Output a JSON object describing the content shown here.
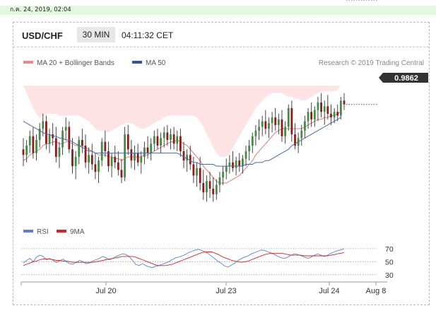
{
  "timestamp": "ก.ค. 24, 2019, 02:04",
  "header": {
    "pair": "USD/CHF",
    "timeframe": "30 MIN",
    "clock": "04:11:32 CET"
  },
  "credit": "Research © 2019 Trading Central",
  "colors": {
    "candle_up": "#3f8f3f",
    "candle_down": "#8e1a1a",
    "wick": "#333333",
    "bb_fill": "#fde3e3",
    "ma20": "#e07070",
    "ma50": "#4a66b0",
    "rsi": "#5b7fd6",
    "rsi_ma": "#e02020",
    "price_badge": "#333333"
  },
  "chart_data": [
    {
      "type": "candlestick",
      "title": "USD/CHF",
      "legend": [
        {
          "name": "MA 20 + Bollinger Bands",
          "color": "#e88a8a"
        },
        {
          "name": "MA 50",
          "color": "#3553a0"
        }
      ],
      "last_price": "0.9862",
      "x_tick_labels": [
        "Jul 20",
        "Jul 23",
        "Jul 24",
        "Aug 8"
      ],
      "grid": false,
      "ohlc": [
        [
          0.9838,
          0.9844,
          0.9829,
          0.9835
        ],
        [
          0.9835,
          0.9843,
          0.9831,
          0.984
        ],
        [
          0.984,
          0.9848,
          0.9836,
          0.9845
        ],
        [
          0.9845,
          0.985,
          0.9833,
          0.9836
        ],
        [
          0.9836,
          0.9846,
          0.9832,
          0.9843
        ],
        [
          0.9843,
          0.9852,
          0.9839,
          0.9849
        ],
        [
          0.9849,
          0.9857,
          0.9845,
          0.9853
        ],
        [
          0.9853,
          0.9856,
          0.9838,
          0.9841
        ],
        [
          0.9841,
          0.9849,
          0.9836,
          0.9846
        ],
        [
          0.9846,
          0.9852,
          0.984,
          0.9844
        ],
        [
          0.9844,
          0.985,
          0.9831,
          0.9834
        ],
        [
          0.9834,
          0.9842,
          0.9828,
          0.9839
        ],
        [
          0.9839,
          0.985,
          0.9835,
          0.9848
        ],
        [
          0.9848,
          0.9855,
          0.9843,
          0.985
        ],
        [
          0.985,
          0.9853,
          0.9836,
          0.9838
        ],
        [
          0.9838,
          0.9844,
          0.9825,
          0.9829
        ],
        [
          0.9829,
          0.9837,
          0.9822,
          0.9834
        ],
        [
          0.9834,
          0.9845,
          0.983,
          0.9843
        ],
        [
          0.9843,
          0.9849,
          0.9836,
          0.984
        ],
        [
          0.984,
          0.9846,
          0.9828,
          0.9831
        ],
        [
          0.9831,
          0.9839,
          0.9825,
          0.9835
        ],
        [
          0.9835,
          0.9841,
          0.9827,
          0.983
        ],
        [
          0.983,
          0.9836,
          0.9822,
          0.9826
        ],
        [
          0.9826,
          0.9834,
          0.982,
          0.9832
        ],
        [
          0.9832,
          0.9844,
          0.9829,
          0.9842
        ],
        [
          0.9842,
          0.9848,
          0.9834,
          0.9837
        ],
        [
          0.9837,
          0.9842,
          0.9826,
          0.9829
        ],
        [
          0.9829,
          0.9836,
          0.9823,
          0.9834
        ],
        [
          0.9834,
          0.984,
          0.9828,
          0.9831
        ],
        [
          0.9831,
          0.9837,
          0.9824,
          0.9827
        ],
        [
          0.9827,
          0.9833,
          0.982,
          0.9823
        ],
        [
          0.9823,
          0.985,
          0.9821,
          0.9846
        ],
        [
          0.9846,
          0.9851,
          0.9835,
          0.9838
        ],
        [
          0.9838,
          0.9843,
          0.9828,
          0.9832
        ],
        [
          0.9832,
          0.984,
          0.9827,
          0.9836
        ],
        [
          0.9836,
          0.9841,
          0.9829,
          0.9831
        ],
        [
          0.9831,
          0.9837,
          0.9825,
          0.9834
        ],
        [
          0.9834,
          0.9842,
          0.983,
          0.9839
        ],
        [
          0.9839,
          0.9845,
          0.9833,
          0.9836
        ],
        [
          0.9836,
          0.9844,
          0.9832,
          0.9841
        ],
        [
          0.9841,
          0.9848,
          0.9837,
          0.9845
        ],
        [
          0.9845,
          0.9849,
          0.9838,
          0.984
        ],
        [
          0.984,
          0.9847,
          0.9836,
          0.9844
        ],
        [
          0.9844,
          0.985,
          0.9839,
          0.9847
        ],
        [
          0.9847,
          0.9851,
          0.984,
          0.9843
        ],
        [
          0.9843,
          0.9849,
          0.9838,
          0.9846
        ],
        [
          0.9846,
          0.985,
          0.9838,
          0.9841
        ],
        [
          0.9841,
          0.9848,
          0.9837,
          0.9845
        ],
        [
          0.9845,
          0.9849,
          0.9834,
          0.9837
        ],
        [
          0.9837,
          0.9842,
          0.9828,
          0.9832
        ],
        [
          0.9832,
          0.9838,
          0.9826,
          0.9835
        ],
        [
          0.9835,
          0.984,
          0.9827,
          0.983
        ],
        [
          0.983,
          0.9834,
          0.982,
          0.9824
        ],
        [
          0.9824,
          0.9831,
          0.9818,
          0.9828
        ],
        [
          0.9828,
          0.9834,
          0.9816,
          0.982
        ],
        [
          0.982,
          0.9827,
          0.9811,
          0.9815
        ],
        [
          0.9815,
          0.9824,
          0.981,
          0.9821
        ],
        [
          0.9821,
          0.9826,
          0.9812,
          0.9817
        ],
        [
          0.9817,
          0.9823,
          0.981,
          0.9814
        ],
        [
          0.9814,
          0.9822,
          0.9811,
          0.9819
        ],
        [
          0.9819,
          0.9826,
          0.9815,
          0.9823
        ],
        [
          0.9823,
          0.9829,
          0.9819,
          0.9826
        ],
        [
          0.9826,
          0.9833,
          0.9822,
          0.9829
        ],
        [
          0.9829,
          0.9835,
          0.9825,
          0.9831
        ],
        [
          0.9831,
          0.9837,
          0.9826,
          0.9828
        ],
        [
          0.9828,
          0.9834,
          0.9824,
          0.9832
        ],
        [
          0.9832,
          0.9836,
          0.9826,
          0.9829
        ],
        [
          0.9829,
          0.9835,
          0.9825,
          0.9833
        ],
        [
          0.9833,
          0.984,
          0.9829,
          0.9837
        ],
        [
          0.9837,
          0.9843,
          0.9832,
          0.984
        ],
        [
          0.984,
          0.9847,
          0.9836,
          0.9845
        ],
        [
          0.9845,
          0.9851,
          0.984,
          0.9848
        ],
        [
          0.9848,
          0.9854,
          0.9843,
          0.985
        ],
        [
          0.985,
          0.9856,
          0.9845,
          0.9853
        ],
        [
          0.9853,
          0.9859,
          0.9846,
          0.9849
        ],
        [
          0.9849,
          0.9855,
          0.9844,
          0.9852
        ],
        [
          0.9852,
          0.9858,
          0.9847,
          0.9855
        ],
        [
          0.9855,
          0.986,
          0.9848,
          0.9851
        ],
        [
          0.9851,
          0.9857,
          0.9846,
          0.9854
        ],
        [
          0.9854,
          0.9859,
          0.9842,
          0.9845
        ],
        [
          0.9845,
          0.9853,
          0.9841,
          0.985
        ],
        [
          0.985,
          0.9862,
          0.9848,
          0.986
        ],
        [
          0.986,
          0.9864,
          0.9842,
          0.9846
        ],
        [
          0.9846,
          0.9852,
          0.9838,
          0.984
        ],
        [
          0.984,
          0.9847,
          0.9836,
          0.9844
        ],
        [
          0.9844,
          0.9851,
          0.984,
          0.9848
        ],
        [
          0.9848,
          0.9856,
          0.9844,
          0.9853
        ],
        [
          0.9853,
          0.986,
          0.9849,
          0.9858
        ],
        [
          0.9858,
          0.9863,
          0.985,
          0.9854
        ],
        [
          0.9854,
          0.9861,
          0.985,
          0.9859
        ],
        [
          0.9859,
          0.9866,
          0.9853,
          0.9863
        ],
        [
          0.9863,
          0.9868,
          0.9855,
          0.9858
        ],
        [
          0.9858,
          0.9864,
          0.9851,
          0.9861
        ],
        [
          0.9861,
          0.9867,
          0.9854,
          0.9857
        ],
        [
          0.9857,
          0.9862,
          0.9851,
          0.9855
        ],
        [
          0.9855,
          0.986,
          0.9852,
          0.9858
        ],
        [
          0.9858,
          0.9862,
          0.9853,
          0.9856
        ],
        [
          0.9856,
          0.9866,
          0.9854,
          0.9864
        ],
        [
          0.9864,
          0.9868,
          0.9859,
          0.9862
        ]
      ],
      "ma20": [
        0.9832,
        0.9833,
        0.9835,
        0.9836,
        0.9837,
        0.9838,
        0.984,
        0.9841,
        0.9841,
        0.9842,
        0.9842,
        0.9841,
        0.9841,
        0.9842,
        0.9842,
        0.9841,
        0.984,
        0.984,
        0.984,
        0.9839,
        0.9838,
        0.9837,
        0.9836,
        0.9835,
        0.9835,
        0.9835,
        0.9834,
        0.9834,
        0.9833,
        0.9833,
        0.9832,
        0.9833,
        0.9834,
        0.9834,
        0.9834,
        0.9834,
        0.9834,
        0.9835,
        0.9835,
        0.9836,
        0.9837,
        0.9838,
        0.9839,
        0.984,
        0.9841,
        0.9842,
        0.9842,
        0.9843,
        0.9842,
        0.9841,
        0.984,
        0.9838,
        0.9836,
        0.9834,
        0.9832,
        0.9829,
        0.9827,
        0.9825,
        0.9823,
        0.9821,
        0.982,
        0.982,
        0.982,
        0.9821,
        0.9822,
        0.9823,
        0.9824,
        0.9826,
        0.9828,
        0.983,
        0.9832,
        0.9835,
        0.9837,
        0.9839,
        0.9841,
        0.9843,
        0.9845,
        0.9847,
        0.9848,
        0.9849,
        0.9849,
        0.9849,
        0.9849,
        0.9849,
        0.9849,
        0.9849,
        0.985,
        0.9851,
        0.9852,
        0.9853,
        0.9854,
        0.9854,
        0.9855,
        0.9855,
        0.9856,
        0.9856,
        0.9857,
        0.9858
      ],
      "bb_upper": [
        0.9872,
        0.9868,
        0.9864,
        0.986,
        0.9857,
        0.9855,
        0.9856,
        0.9857,
        0.9857,
        0.9857,
        0.9857,
        0.9856,
        0.9856,
        0.9856,
        0.9856,
        0.9856,
        0.9856,
        0.9856,
        0.9855,
        0.9854,
        0.9853,
        0.9851,
        0.9849,
        0.9848,
        0.9848,
        0.9848,
        0.9847,
        0.9848,
        0.9849,
        0.985,
        0.9851,
        0.9852,
        0.9852,
        0.9852,
        0.9851,
        0.985,
        0.9849,
        0.9849,
        0.985,
        0.9851,
        0.9852,
        0.9853,
        0.9854,
        0.9855,
        0.9856,
        0.9856,
        0.9856,
        0.9856,
        0.9856,
        0.9856,
        0.9856,
        0.9856,
        0.9856,
        0.9855,
        0.9853,
        0.985,
        0.9846,
        0.9843,
        0.9839,
        0.9836,
        0.9834,
        0.9834,
        0.9834,
        0.9836,
        0.9839,
        0.9842,
        0.9845,
        0.9848,
        0.9851,
        0.9854,
        0.9857,
        0.986,
        0.9862,
        0.9864,
        0.9866,
        0.9867,
        0.9868,
        0.9868,
        0.9868,
        0.9868,
        0.9867,
        0.9866,
        0.9866,
        0.9865,
        0.9865,
        0.9864,
        0.9864,
        0.9865,
        0.9866,
        0.9867,
        0.9868,
        0.9869,
        0.9869,
        0.9869,
        0.9869,
        0.9869,
        0.987,
        0.9872
      ],
      "bb_lower": [
        0.9818,
        0.982,
        0.9822,
        0.9823,
        0.9824,
        0.9824,
        0.9824,
        0.9825,
        0.9825,
        0.9826,
        0.9826,
        0.9826,
        0.9826,
        0.9827,
        0.9827,
        0.9826,
        0.9824,
        0.9823,
        0.9823,
        0.9822,
        0.9822,
        0.9822,
        0.9821,
        0.9821,
        0.9821,
        0.9821,
        0.9821,
        0.982,
        0.9819,
        0.9818,
        0.9817,
        0.9817,
        0.9817,
        0.9818,
        0.9819,
        0.982,
        0.9821,
        0.9822,
        0.9823,
        0.9824,
        0.9825,
        0.9826,
        0.9827,
        0.9828,
        0.9829,
        0.983,
        0.983,
        0.983,
        0.9829,
        0.9828,
        0.9825,
        0.9821,
        0.9818,
        0.9815,
        0.9812,
        0.981,
        0.9809,
        0.9808,
        0.9807,
        0.9807,
        0.9807,
        0.9806,
        0.9806,
        0.9806,
        0.9806,
        0.9806,
        0.9806,
        0.9807,
        0.9808,
        0.981,
        0.9812,
        0.9814,
        0.9817,
        0.982,
        0.9822,
        0.9824,
        0.9827,
        0.9829,
        0.9831,
        0.9832,
        0.9833,
        0.9834,
        0.9835,
        0.9836,
        0.9836,
        0.9837,
        0.9837,
        0.9838,
        0.9839,
        0.984,
        0.9841,
        0.9842,
        0.9843,
        0.9843,
        0.9844,
        0.9845,
        0.9846,
        0.9847
      ],
      "ma50": [
        0.9853,
        0.9852,
        0.9851,
        0.985,
        0.9849,
        0.9848,
        0.9847,
        0.9846,
        0.9846,
        0.9845,
        0.9845,
        0.9844,
        0.9844,
        0.9843,
        0.9843,
        0.9842,
        0.9841,
        0.984,
        0.9839,
        0.9838,
        0.9837,
        0.9837,
        0.9836,
        0.9836,
        0.9836,
        0.9836,
        0.9836,
        0.9836,
        0.9836,
        0.9836,
        0.9836,
        0.9836,
        0.9836,
        0.9836,
        0.9836,
        0.9836,
        0.9836,
        0.9836,
        0.9836,
        0.9836,
        0.9836,
        0.9836,
        0.9836,
        0.9836,
        0.9836,
        0.9836,
        0.9836,
        0.9836,
        0.9835,
        0.9834,
        0.9833,
        0.9832,
        0.9831,
        0.9831,
        0.983,
        0.983,
        0.983,
        0.983,
        0.983,
        0.9829,
        0.9829,
        0.9829,
        0.9829,
        0.9829,
        0.9829,
        0.9829,
        0.9829,
        0.9829,
        0.983,
        0.983,
        0.983,
        0.9831,
        0.9831,
        0.9831,
        0.9832,
        0.9832,
        0.9833,
        0.9834,
        0.9835,
        0.9836,
        0.9837,
        0.9838,
        0.984,
        0.9841,
        0.9842,
        0.9843,
        0.9844,
        0.9845,
        0.9846,
        0.9847,
        0.9848,
        0.9849,
        0.985,
        0.9851,
        0.9852,
        0.9853,
        0.9854,
        0.9855
      ],
      "ylim": [
        0.98,
        0.988
      ]
    },
    {
      "type": "line",
      "series": [
        {
          "name": "RSI",
          "color": "#5b7fd6",
          "values": [
            48,
            52,
            55,
            50,
            57,
            60,
            58,
            53,
            55,
            52,
            49,
            51,
            54,
            50,
            47,
            46,
            49,
            52,
            50,
            47,
            48,
            51,
            53,
            55,
            58,
            56,
            53,
            55,
            58,
            60,
            62,
            61,
            58,
            52,
            46,
            44,
            47,
            44,
            42,
            41,
            43,
            44,
            46,
            48,
            50,
            53,
            56,
            57,
            59,
            61,
            64,
            66,
            68,
            69,
            67,
            65,
            62,
            58,
            54,
            50,
            47,
            43,
            42,
            45,
            48,
            52,
            55,
            57,
            59,
            62,
            64,
            66,
            68,
            67,
            65,
            63,
            61,
            58,
            56,
            55,
            57,
            60,
            62,
            61,
            59,
            57,
            55,
            57,
            60,
            62,
            60,
            58,
            60,
            63,
            65,
            67,
            68,
            70
          ]
        },
        {
          "name": "9MA",
          "color": "#e02020",
          "values": [
            44,
            46,
            48,
            50,
            51,
            53,
            54,
            54,
            54,
            53,
            52,
            52,
            51,
            51,
            50,
            49,
            49,
            49,
            49,
            49,
            49,
            49,
            50,
            51,
            52,
            53,
            54,
            55,
            56,
            57,
            58,
            58,
            58,
            58,
            57,
            55,
            53,
            51,
            49,
            47,
            45,
            44,
            44,
            44,
            45,
            46,
            48,
            50,
            52,
            54,
            56,
            58,
            60,
            62,
            64,
            65,
            65,
            65,
            63,
            61,
            58,
            56,
            54,
            52,
            51,
            50,
            49,
            50,
            51,
            53,
            55,
            57,
            59,
            61,
            62,
            63,
            63,
            63,
            63,
            62,
            61,
            60,
            60,
            60,
            60,
            59,
            59,
            59,
            59,
            59,
            59,
            59,
            59,
            60,
            61,
            62,
            63,
            64
          ]
        }
      ],
      "y_tick_labels": [
        "70",
        "50",
        "30"
      ],
      "ylim": [
        20,
        85
      ],
      "grid": false
    }
  ]
}
